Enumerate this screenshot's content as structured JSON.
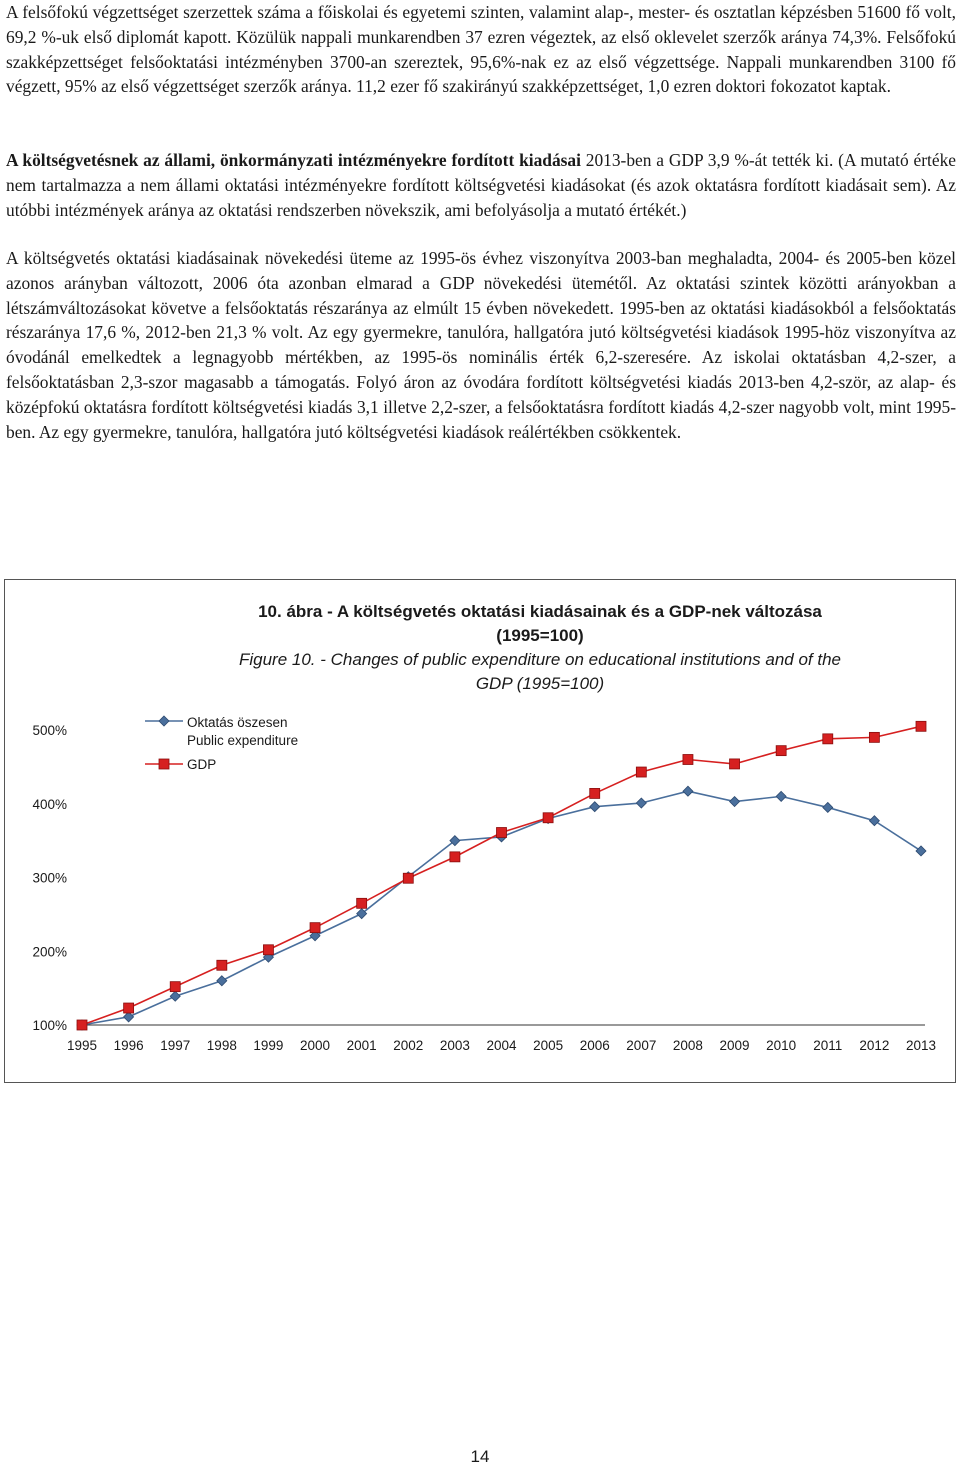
{
  "paragraphs": {
    "p1": "A felsőfokú végzettséget szerzettek száma a főiskolai és egyetemi szinten, valamint alap-, mester- és osztatlan képzésben 51600 fő volt, 69,2 %-uk első diplomát kapott. Közülük nappali munkarendben 37 ezren végeztek, az első oklevelet szerzők aránya 74,3%. Felsőfokú szakképzettséget felsőoktatási intézményben 3700-an szereztek, 95,6%-nak ez az első végzettsége. Nappali munkarendben 3100 fő végzett, 95% az első végzettséget szerzők aránya. 11,2 ezer fő szakirányú szakképzettséget, 1,0 ezren doktori fokozatot kaptak.",
    "p2_bold": "A költségvetésnek az állami, önkormányzati intézményekre fordított kiadásai",
    "p2_rest": " 2013-ben a GDP 3,9 %-át tették ki. (A mutató értéke nem tartalmazza a nem állami oktatási intézményekre fordított költségvetési kiadásokat (és azok oktatásra fordított kiadásait sem). Az utóbbi intézmények aránya az oktatási rendszerben növekszik, ami befolyásolja a mutató értékét.)",
    "p3": "A költségvetés oktatási kiadásainak növekedési üteme az 1995-ös évhez viszonyítva 2003-ban meghaladta, 2004- és 2005-ben közel azonos arányban változott, 2006 óta azonban elmarad a GDP növekedési ütemétől. Az oktatási szintek közötti arányokban a létszámváltozásokat követve a felsőoktatás részaránya az elmúlt 15 évben növekedett. 1995-ben az oktatási kiadásokból a felsőoktatás részaránya 17,6 %, 2012-ben 21,3 % volt. Az egy gyermekre, tanulóra, hallgatóra jutó költségvetési kiadások 1995-höz viszonyítva az óvodánál emelkedtek a legnagyobb mértékben, az 1995-ös nominális érték 6,2-szeresére. Az iskolai oktatásban 4,2-szer, a felsőoktatásban 2,3-szor magasabb a támogatás. Folyó áron az óvodára fordított költségvetési kiadás 2013-ben 4,2-ször, az alap- és középfokú oktatásra fordított költségvetési kiadás 3,1 illetve 2,2-szer, a felsőoktatásra fordított kiadás 4,2-szer nagyobb volt, mint 1995-ben. Az egy gyermekre, tanulóra, hallgatóra jutó költségvetési kiadások reálértékben csökkentek."
  },
  "figure": {
    "title_hu_line1": "10. ábra - A költségvetés oktatási kiadásainak és a GDP-nek változása",
    "title_hu_line2": "(1995=100)",
    "title_en_line1": "Figure 10. - Changes of public expenditure on educational institutions and of the",
    "title_en_line2": "GDP (1995=100)"
  },
  "chart_data": {
    "type": "line",
    "title": "10. ábra - A költségvetés oktatási kiadásainak és a GDP-nek változása (1995=100)",
    "subtitle": "Figure 10. - Changes of public expenditure on educational institutions and of the GDP (1995=100)",
    "xlabel": "",
    "ylabel": "",
    "x": [
      "1995",
      "1996",
      "1997",
      "1998",
      "1999",
      "2000",
      "2001",
      "2002",
      "2003",
      "2004",
      "2005",
      "2006",
      "2007",
      "2008",
      "2009",
      "2010",
      "2011",
      "2012",
      "2013"
    ],
    "ylim": [
      100,
      500
    ],
    "yticks": [
      "100%",
      "200%",
      "300%",
      "400%",
      "500%"
    ],
    "ytick_values": [
      100,
      200,
      300,
      400,
      500
    ],
    "grid": false,
    "legend_position": "top-left",
    "series": [
      {
        "name_line1": "Oktatás öszesen",
        "name_line2": "Public expenditure",
        "color": "#4a6f9c",
        "marker": "diamond",
        "values": [
          100,
          111,
          139,
          160,
          192,
          221,
          251,
          301,
          350,
          355,
          380,
          396,
          401,
          417,
          403,
          410,
          395,
          377,
          336
        ]
      },
      {
        "name": "GDP",
        "color": "#d62020",
        "marker": "square",
        "values": [
          100,
          123,
          152,
          181,
          202,
          232,
          265,
          299,
          328,
          361,
          381,
          414,
          443,
          460,
          454,
          472,
          488,
          490,
          505
        ]
      }
    ]
  },
  "page_number": "14"
}
